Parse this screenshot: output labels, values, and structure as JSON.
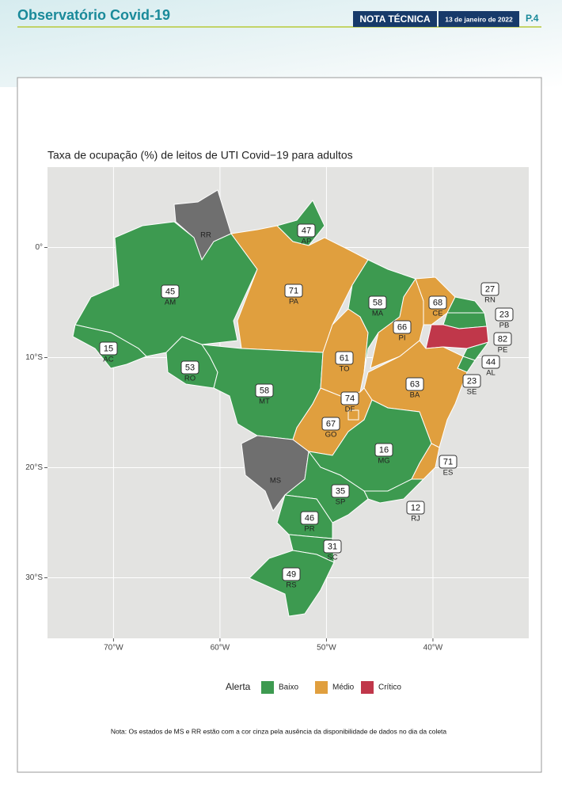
{
  "header": {
    "title": "Observatório Covid-19",
    "badge": "NOTA TÉCNICA",
    "date": "13 de janeiro de 2022",
    "page": "P.4"
  },
  "map": {
    "title": "Taxa de ocupação (%) de leitos de UTI Covid−19 para adultos",
    "xlim": [
      -76.2,
      -31.0
    ],
    "ylim": [
      -35.5,
      7.3
    ],
    "xticks": [
      {
        "value": -70,
        "label": "70°W"
      },
      {
        "value": -60,
        "label": "60°W"
      },
      {
        "value": -50,
        "label": "50°W"
      },
      {
        "value": -40,
        "label": "40°W"
      }
    ],
    "yticks": [
      {
        "value": 0,
        "label": "0°"
      },
      {
        "value": -10,
        "label": "10°S"
      },
      {
        "value": -20,
        "label": "20°S"
      },
      {
        "value": -30,
        "label": "30°S"
      }
    ],
    "grid": true,
    "legend": {
      "title": "Alerta",
      "items": [
        {
          "label": "Baixo",
          "color": "#3d9a50"
        },
        {
          "label": "Médio",
          "color": "#e09f3e"
        },
        {
          "label": "Crítico",
          "color": "#c0374a"
        }
      ]
    },
    "states": [
      {
        "code": "RR",
        "color": "#6f6f6f"
      },
      {
        "code": "AP",
        "value": 47,
        "color": "#3d9a50"
      },
      {
        "code": "AM",
        "value": 45,
        "color": "#3d9a50"
      },
      {
        "code": "AC",
        "value": 15,
        "color": "#3d9a50"
      },
      {
        "code": "RO",
        "value": 53,
        "color": "#3d9a50"
      },
      {
        "code": "PA",
        "value": 71,
        "color": "#e09f3e"
      },
      {
        "code": "MT",
        "value": 58,
        "color": "#3d9a50"
      },
      {
        "code": "MS",
        "color": "#6f6f6f"
      },
      {
        "code": "TO",
        "value": 61,
        "color": "#e09f3e"
      },
      {
        "code": "MA",
        "value": 58,
        "color": "#3d9a50"
      },
      {
        "code": "PI",
        "value": 66,
        "color": "#e09f3e"
      },
      {
        "code": "CE",
        "value": 68,
        "color": "#e09f3e"
      },
      {
        "code": "RN",
        "value": 27,
        "color": "#3d9a50"
      },
      {
        "code": "PB",
        "value": 23,
        "color": "#3d9a50"
      },
      {
        "code": "PE",
        "value": 82,
        "color": "#c0374a"
      },
      {
        "code": "AL",
        "value": 44,
        "color": "#3d9a50"
      },
      {
        "code": "SE",
        "value": 23,
        "color": "#3d9a50"
      },
      {
        "code": "BA",
        "value": 63,
        "color": "#e09f3e"
      },
      {
        "code": "GO",
        "value": 67,
        "color": "#e09f3e"
      },
      {
        "code": "DF",
        "value": 74,
        "color": "#e09f3e"
      },
      {
        "code": "MG",
        "value": 16,
        "color": "#3d9a50"
      },
      {
        "code": "ES",
        "value": 71,
        "color": "#e09f3e"
      },
      {
        "code": "RJ",
        "value": 12,
        "color": "#3d9a50"
      },
      {
        "code": "SP",
        "value": 35,
        "color": "#3d9a50"
      },
      {
        "code": "PR",
        "value": 46,
        "color": "#3d9a50"
      },
      {
        "code": "SC",
        "value": 31,
        "color": "#3d9a50"
      },
      {
        "code": "RS",
        "value": 49,
        "color": "#3d9a50"
      }
    ],
    "note": "Nota: Os estados de MS e RR estão com a cor cinza pela ausência da disponibilidade de dados no dia da coleta"
  }
}
